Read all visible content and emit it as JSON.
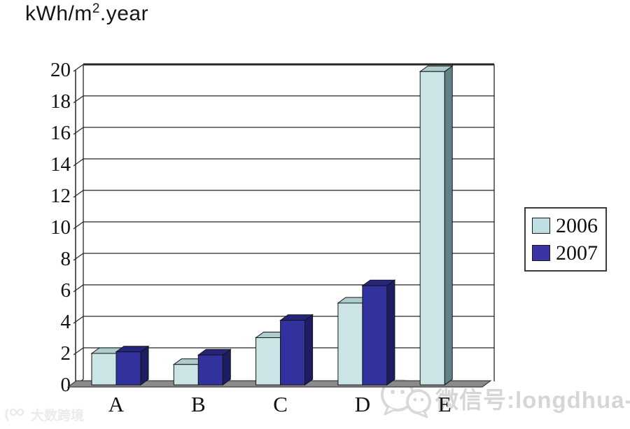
{
  "header": {
    "title_prefix": "kWh/m",
    "title_sup": "2",
    "title_suffix": ".year"
  },
  "chart_data": {
    "type": "bar",
    "projection": "3d",
    "title": "kWh/m².year",
    "categories": [
      "A",
      "B",
      "C",
      "D",
      "E"
    ],
    "series": [
      {
        "name": "2006",
        "values": [
          2.0,
          1.3,
          3.0,
          5.2,
          19.9
        ],
        "color_front": "#cbe5e7",
        "color_top": "#aecccd",
        "color_side": "#5f8289"
      },
      {
        "name": "2007",
        "values": [
          2.1,
          1.9,
          4.1,
          6.3,
          0
        ],
        "color_front": "#32329e",
        "color_top": "#25257e",
        "color_side": "#1d1d64"
      }
    ],
    "ylim": [
      0,
      20
    ],
    "ytick_step": 2,
    "yticks": [
      0,
      2,
      4,
      6,
      8,
      10,
      12,
      14,
      16,
      18,
      20
    ],
    "grid": true,
    "legend_position": "right",
    "wall_color": "#ffffff",
    "floor_color": "#8a8a8a",
    "line_color": "#262626",
    "text_color": "#111111"
  },
  "legend": {
    "items": [
      {
        "label": "2006",
        "color": "#bfe0e2"
      },
      {
        "label": "2007",
        "color": "#3a35a4"
      }
    ]
  },
  "watermarks": {
    "right_text": "微信号:longdhua-",
    "left_text": "大数跨境"
  }
}
